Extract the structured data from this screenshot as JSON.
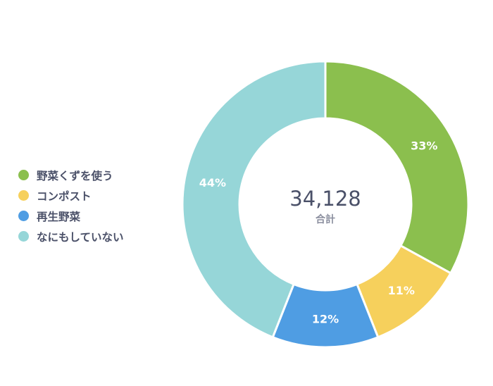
{
  "chart_data": {
    "type": "pie",
    "categories": [
      "野菜くずを使う",
      "コンポスト",
      "再生野菜",
      "なにもしていない"
    ],
    "values": [
      33,
      11,
      12,
      44
    ],
    "value_labels": [
      "33%",
      "11%",
      "12%",
      "44%"
    ],
    "colors": [
      "#8bbf4e",
      "#f6d05c",
      "#4f9de3",
      "#96d6d8"
    ],
    "legend_position": "left",
    "center_total": "34,128",
    "center_caption": "合計"
  }
}
